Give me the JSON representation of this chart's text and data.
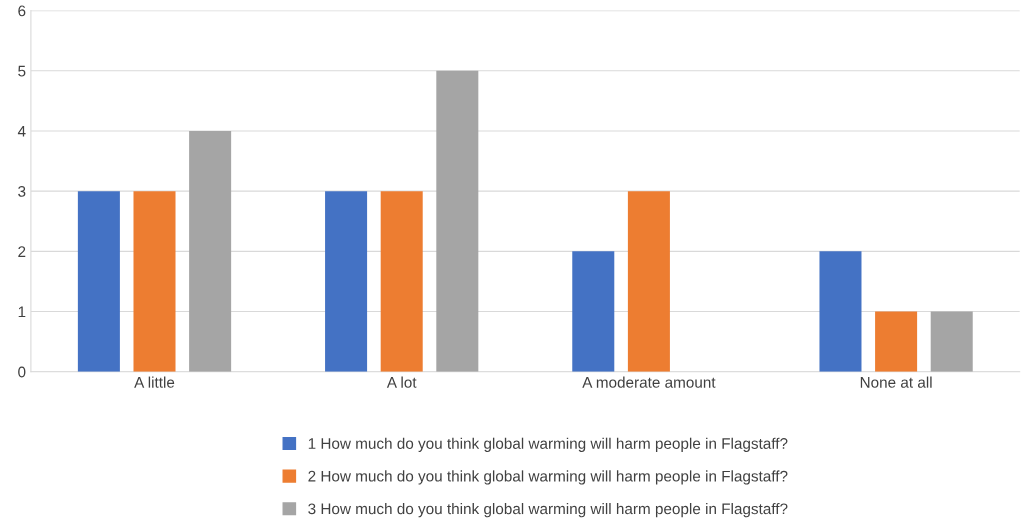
{
  "chart_data": {
    "type": "bar",
    "categories": [
      "A little",
      "A lot",
      "A moderate amount",
      "None at all"
    ],
    "series": [
      {
        "name": "1 How much do you think global warming will harm people in Flagstaff?",
        "color": "#4472c4",
        "values": [
          3,
          3,
          2,
          2
        ]
      },
      {
        "name": "2 How much do you think global warming will harm people in Flagstaff?",
        "color": "#ed7d31",
        "values": [
          3,
          3,
          3,
          1
        ]
      },
      {
        "name": "3 How much do you think global warming will harm people in Flagstaff?",
        "color": "#a5a5a5",
        "values": [
          4,
          5,
          null,
          1
        ]
      }
    ],
    "ylim": [
      0,
      6
    ],
    "yticks": [
      0,
      1,
      2,
      3,
      4,
      5,
      6
    ],
    "grid": "y",
    "legend": "bottom"
  }
}
